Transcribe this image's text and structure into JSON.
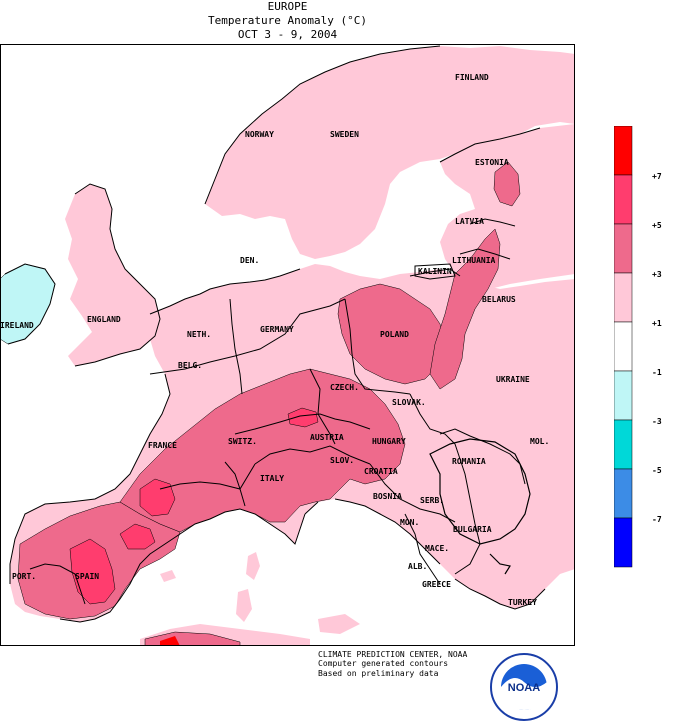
{
  "header": {
    "region": "EUROPE",
    "variable": "Temperature Anomaly (°C)",
    "period": "OCT 3 - 9, 2004"
  },
  "countries": [
    "FINLAND",
    "NORWAY",
    "SWEDEN",
    "ESTONIA",
    "LATVIA",
    "DEN.",
    "LITHUANIA",
    "KALININ.",
    "BELARUS",
    "IRELAND",
    "ENGLAND",
    "NETH.",
    "POLAND",
    "GERMANY",
    "BELG.",
    "CZECH.",
    "UKRAINE",
    "SLOVAK.",
    "FRANCE",
    "SWITZ.",
    "AUSTRIA",
    "HUNGARY",
    "MOL.",
    "ROMANIA",
    "SLOV.",
    "CROATIA",
    "ITALY",
    "BOSNIA",
    "SERB.",
    "BULGARIA",
    "MON.",
    "MACE.",
    "ALB.",
    "PORT.",
    "SPAIN",
    "GREECE",
    "TURKEY"
  ],
  "legend": {
    "labels": [
      "+7",
      "+5",
      "+3",
      "+1",
      "-1",
      "-3",
      "-5",
      "-7"
    ],
    "colors": [
      "#ff0000",
      "#ff3d6e",
      "#ee6a8c",
      "#ffc8d8",
      "#ffffff",
      "#bff6f6",
      "#00d8d8",
      "#3c8ce6",
      "#0000ff"
    ]
  },
  "fill_colors": {
    "ocean": "#ffffff",
    "land_base": "#ffc8d8",
    "mid": "#ee6a8c",
    "high": "#ff3d6e",
    "top": "#ff0000",
    "cool": "#bff6f6"
  },
  "footer": {
    "line1": "CLIMATE PREDICTION CENTER, NOAA",
    "line2": "Computer generated contours",
    "line3": "Based on preliminary data"
  },
  "logo": {
    "text": "NOAA",
    "icon": "noaa-logo-icon"
  }
}
